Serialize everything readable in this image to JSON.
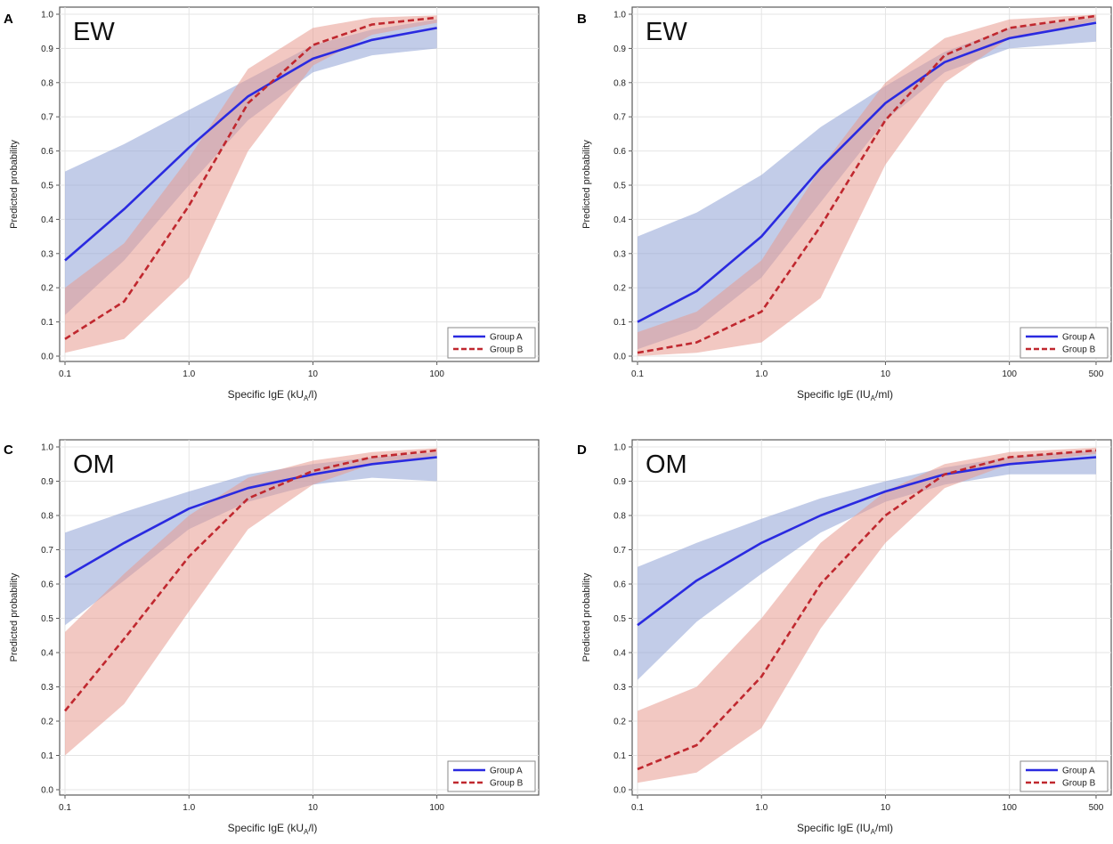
{
  "chart_data": [
    {
      "panel_letter": "A",
      "type": "line",
      "inset_label": "EW",
      "xlabel": "Specific IgE  (kU",
      "xlabel_subscript": "A",
      "xlabel_suffix": "/l)",
      "ylabel": "Predicted probability",
      "xscale": "log",
      "xlim": [
        0.1,
        600
      ],
      "ylim": [
        0,
        1
      ],
      "xticks": [
        0.1,
        1,
        10,
        100
      ],
      "xtick_labels": [
        "0.1",
        "1.0",
        "10",
        "100"
      ],
      "yticks": [
        0,
        0.1,
        0.2,
        0.3,
        0.4,
        0.5,
        0.6,
        0.7,
        0.8,
        0.9,
        1.0
      ],
      "ytick_labels": [
        "0.0",
        "0.1",
        "0.2",
        "0.3",
        "0.4",
        "0.5",
        "0.6",
        "0.7",
        "0.8",
        "0.9",
        "1.0"
      ],
      "grid": true,
      "legend_position": "bottom-right",
      "series": [
        {
          "name": "Group A",
          "color": "#2a2ae0",
          "line_style": "solid",
          "band_color": "#8fa3d6",
          "x": [
            0.1,
            0.3,
            1,
            3,
            10,
            30,
            100
          ],
          "y": [
            0.28,
            0.43,
            0.61,
            0.76,
            0.87,
            0.925,
            0.96
          ],
          "lower": [
            0.12,
            0.28,
            0.5,
            0.69,
            0.83,
            0.88,
            0.9
          ],
          "upper": [
            0.54,
            0.62,
            0.72,
            0.81,
            0.91,
            0.955,
            0.985
          ]
        },
        {
          "name": "Group B",
          "color": "#c0282f",
          "line_style": "dashed",
          "band_color": "#e89a8f",
          "x": [
            0.1,
            0.3,
            1,
            3,
            10,
            30,
            100
          ],
          "y": [
            0.05,
            0.16,
            0.44,
            0.74,
            0.91,
            0.97,
            0.99
          ],
          "lower": [
            0.01,
            0.05,
            0.23,
            0.6,
            0.85,
            0.94,
            0.975
          ],
          "upper": [
            0.2,
            0.33,
            0.58,
            0.84,
            0.96,
            0.99,
            0.997
          ]
        }
      ]
    },
    {
      "panel_letter": "B",
      "type": "line",
      "inset_label": "EW",
      "xlabel": "Specific IgE  (IU",
      "xlabel_subscript": "A",
      "xlabel_suffix": "/ml)",
      "ylabel": "Predicted probability",
      "xscale": "log",
      "xlim": [
        0.1,
        600
      ],
      "ylim": [
        0,
        1
      ],
      "xticks": [
        0.1,
        1,
        10,
        100,
        500
      ],
      "xtick_labels": [
        "0.1",
        "1.0",
        "10",
        "100",
        "500"
      ],
      "yticks": [
        0,
        0.1,
        0.2,
        0.3,
        0.4,
        0.5,
        0.6,
        0.7,
        0.8,
        0.9,
        1.0
      ],
      "ytick_labels": [
        "0.0",
        "0.1",
        "0.2",
        "0.3",
        "0.4",
        "0.5",
        "0.6",
        "0.7",
        "0.8",
        "0.9",
        "1.0"
      ],
      "grid": true,
      "legend_position": "bottom-right",
      "series": [
        {
          "name": "Group A",
          "color": "#2a2ae0",
          "line_style": "solid",
          "band_color": "#8fa3d6",
          "x": [
            0.1,
            0.3,
            1,
            3,
            10,
            30,
            100,
            500
          ],
          "y": [
            0.1,
            0.19,
            0.35,
            0.55,
            0.74,
            0.86,
            0.93,
            0.975
          ],
          "lower": [
            0.02,
            0.08,
            0.23,
            0.45,
            0.69,
            0.83,
            0.9,
            0.92
          ],
          "upper": [
            0.35,
            0.42,
            0.53,
            0.67,
            0.79,
            0.89,
            0.96,
            0.99
          ]
        },
        {
          "name": "Group B",
          "color": "#c0282f",
          "line_style": "dashed",
          "band_color": "#e89a8f",
          "x": [
            0.1,
            0.3,
            1,
            3,
            10,
            30,
            100,
            500
          ],
          "y": [
            0.01,
            0.04,
            0.13,
            0.38,
            0.69,
            0.88,
            0.96,
            0.995
          ],
          "lower": [
            0.0,
            0.01,
            0.04,
            0.17,
            0.56,
            0.8,
            0.93,
            0.98
          ],
          "upper": [
            0.07,
            0.13,
            0.28,
            0.55,
            0.8,
            0.93,
            0.985,
            0.999
          ]
        }
      ]
    },
    {
      "panel_letter": "C",
      "type": "line",
      "inset_label": "OM",
      "xlabel": "Specific IgE  (kU",
      "xlabel_subscript": "A",
      "xlabel_suffix": "/l)",
      "ylabel": "Predicted probability",
      "xscale": "log",
      "xlim": [
        0.1,
        600
      ],
      "ylim": [
        0,
        1
      ],
      "xticks": [
        0.1,
        1,
        10,
        100
      ],
      "xtick_labels": [
        "0.1",
        "1.0",
        "10",
        "100"
      ],
      "yticks": [
        0,
        0.1,
        0.2,
        0.3,
        0.4,
        0.5,
        0.6,
        0.7,
        0.8,
        0.9,
        1.0
      ],
      "ytick_labels": [
        "0.0",
        "0.1",
        "0.2",
        "0.3",
        "0.4",
        "0.5",
        "0.6",
        "0.7",
        "0.8",
        "0.9",
        "1.0"
      ],
      "grid": true,
      "legend_position": "bottom-right",
      "series": [
        {
          "name": "Group A",
          "color": "#2a2ae0",
          "line_style": "solid",
          "band_color": "#8fa3d6",
          "x": [
            0.1,
            0.3,
            1,
            3,
            10,
            30,
            100
          ],
          "y": [
            0.62,
            0.72,
            0.82,
            0.88,
            0.92,
            0.95,
            0.97
          ],
          "lower": [
            0.48,
            0.61,
            0.76,
            0.84,
            0.89,
            0.91,
            0.9
          ],
          "upper": [
            0.75,
            0.81,
            0.87,
            0.92,
            0.95,
            0.97,
            0.985
          ]
        },
        {
          "name": "Group B",
          "color": "#c0282f",
          "line_style": "dashed",
          "band_color": "#e89a8f",
          "x": [
            0.1,
            0.3,
            1,
            3,
            10,
            30,
            100
          ],
          "y": [
            0.23,
            0.44,
            0.68,
            0.85,
            0.93,
            0.97,
            0.99
          ],
          "lower": [
            0.1,
            0.25,
            0.52,
            0.76,
            0.89,
            0.95,
            0.975
          ],
          "upper": [
            0.46,
            0.63,
            0.8,
            0.91,
            0.96,
            0.985,
            0.997
          ]
        }
      ]
    },
    {
      "panel_letter": "D",
      "type": "line",
      "inset_label": "OM",
      "xlabel": "Specific IgE  (IU",
      "xlabel_subscript": "A",
      "xlabel_suffix": "/ml)",
      "ylabel": "Predicted probability",
      "xscale": "log",
      "xlim": [
        0.1,
        600
      ],
      "ylim": [
        0,
        1
      ],
      "xticks": [
        0.1,
        1,
        10,
        100,
        500
      ],
      "xtick_labels": [
        "0.1",
        "1.0",
        "10",
        "100",
        "500"
      ],
      "yticks": [
        0,
        0.1,
        0.2,
        0.3,
        0.4,
        0.5,
        0.6,
        0.7,
        0.8,
        0.9,
        1.0
      ],
      "ytick_labels": [
        "0.0",
        "0.1",
        "0.2",
        "0.3",
        "0.4",
        "0.5",
        "0.6",
        "0.7",
        "0.8",
        "0.9",
        "1.0"
      ],
      "grid": true,
      "legend_position": "bottom-right",
      "series": [
        {
          "name": "Group A",
          "color": "#2a2ae0",
          "line_style": "solid",
          "band_color": "#8fa3d6",
          "x": [
            0.1,
            0.3,
            1,
            3,
            10,
            30,
            100,
            500
          ],
          "y": [
            0.48,
            0.61,
            0.72,
            0.8,
            0.87,
            0.92,
            0.95,
            0.97
          ],
          "lower": [
            0.32,
            0.49,
            0.63,
            0.75,
            0.84,
            0.89,
            0.92,
            0.92
          ],
          "upper": [
            0.65,
            0.72,
            0.79,
            0.85,
            0.9,
            0.94,
            0.97,
            0.99
          ]
        },
        {
          "name": "Group B",
          "color": "#c0282f",
          "line_style": "dashed",
          "band_color": "#e89a8f",
          "x": [
            0.1,
            0.3,
            1,
            3,
            10,
            30,
            100,
            500
          ],
          "y": [
            0.06,
            0.13,
            0.33,
            0.6,
            0.8,
            0.92,
            0.97,
            0.99
          ],
          "lower": [
            0.02,
            0.05,
            0.18,
            0.47,
            0.72,
            0.88,
            0.95,
            0.98
          ],
          "upper": [
            0.23,
            0.3,
            0.5,
            0.72,
            0.87,
            0.95,
            0.985,
            0.998
          ]
        }
      ]
    }
  ]
}
